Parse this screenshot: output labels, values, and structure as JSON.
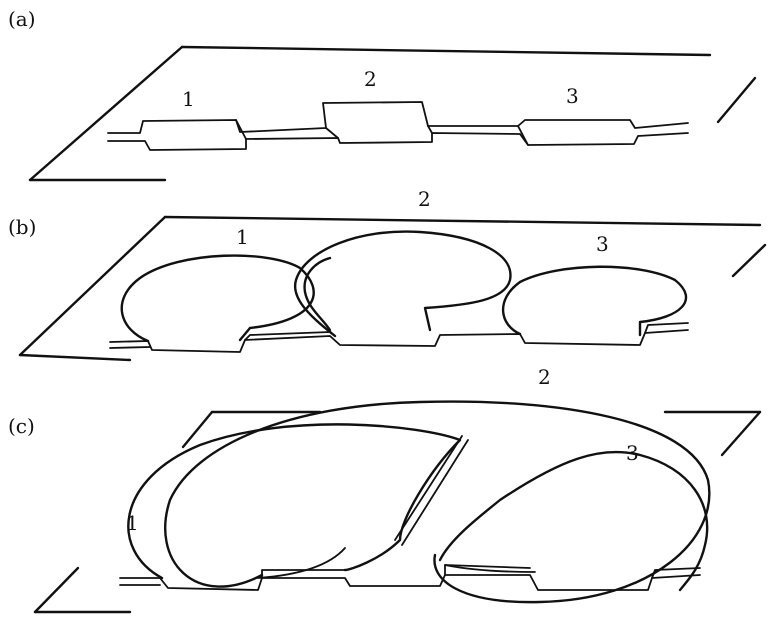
{
  "panels": [
    {
      "id": "a",
      "label": "(a)",
      "loops": [
        {
          "label": "1"
        },
        {
          "label": "2"
        },
        {
          "label": "3"
        }
      ]
    },
    {
      "id": "b",
      "label": "(b)",
      "loops": [
        {
          "label": "1"
        },
        {
          "label": "2"
        },
        {
          "label": "3"
        }
      ]
    },
    {
      "id": "c",
      "label": "(c)",
      "loops": [
        {
          "label": "1"
        },
        {
          "label": "2"
        },
        {
          "label": "3"
        }
      ]
    }
  ]
}
